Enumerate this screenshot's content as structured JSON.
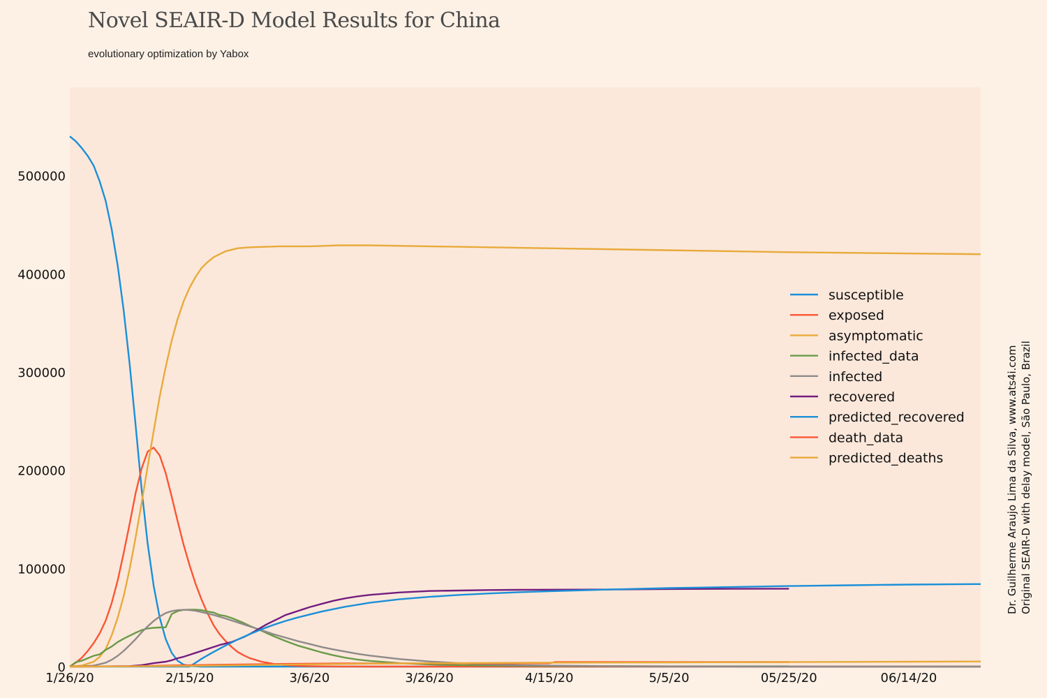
{
  "chart_data": {
    "type": "line",
    "title": "Novel SEAIR-D Model Results for China",
    "subtitle": "evolutionary optimization by Yabox",
    "credit_line1": "Dr. Guilherme Araujo Lima da Silva, www.ats4i.com",
    "credit_line2": "Original SEAIR-D with delay model, São Paulo, Brazil",
    "xlabel": "",
    "ylabel": "",
    "x_unit": "days since 1/26/20",
    "xlim": [
      0,
      152
    ],
    "ylim": [
      0,
      590000
    ],
    "x_ticks": [
      {
        "x": 0,
        "label": "1/26/20"
      },
      {
        "x": 20,
        "label": "2/15/20"
      },
      {
        "x": 40,
        "label": "3/6/20"
      },
      {
        "x": 60,
        "label": "3/26/20"
      },
      {
        "x": 80,
        "label": "4/15/20"
      },
      {
        "x": 100,
        "label": "5/5/20"
      },
      {
        "x": 120,
        "label": "05/25/20"
      },
      {
        "x": 140,
        "label": "06/14/20"
      }
    ],
    "y_ticks": [
      {
        "y": 0,
        "label": "0"
      },
      {
        "y": 100000,
        "label": "100000"
      },
      {
        "y": 200000,
        "label": "200000"
      },
      {
        "y": 300000,
        "label": "300000"
      },
      {
        "y": 400000,
        "label": "400000"
      },
      {
        "y": 500000,
        "label": "500000"
      }
    ],
    "grid": false,
    "legend_position": "right",
    "series": [
      {
        "name": "susceptible",
        "color": "#1a8fd8",
        "points": [
          [
            0,
            540000
          ],
          [
            1,
            535000
          ],
          [
            2,
            528000
          ],
          [
            3,
            520000
          ],
          [
            4,
            510000
          ],
          [
            5,
            494000
          ],
          [
            6,
            474000
          ],
          [
            7,
            445000
          ],
          [
            8,
            408000
          ],
          [
            9,
            362000
          ],
          [
            10,
            307000
          ],
          [
            11,
            245000
          ],
          [
            12,
            180000
          ],
          [
            13,
            125000
          ],
          [
            14,
            82000
          ],
          [
            15,
            50000
          ],
          [
            16,
            28000
          ],
          [
            17,
            14000
          ],
          [
            18,
            6000
          ],
          [
            19,
            2000
          ],
          [
            20,
            500
          ],
          [
            22,
            0
          ],
          [
            40,
            0
          ],
          [
            80,
            0
          ],
          [
            152,
            0
          ]
        ]
      },
      {
        "name": "exposed",
        "color": "#fa5533",
        "points": [
          [
            0,
            0
          ],
          [
            1,
            4000
          ],
          [
            2,
            9000
          ],
          [
            3,
            16000
          ],
          [
            4,
            24000
          ],
          [
            5,
            34000
          ],
          [
            6,
            47000
          ],
          [
            7,
            65000
          ],
          [
            8,
            88000
          ],
          [
            9,
            116000
          ],
          [
            10,
            146000
          ],
          [
            11,
            177000
          ],
          [
            12,
            202000
          ],
          [
            13,
            219000
          ],
          [
            14,
            223000
          ],
          [
            15,
            215000
          ],
          [
            16,
            197000
          ],
          [
            17,
            173000
          ],
          [
            18,
            148000
          ],
          [
            19,
            124000
          ],
          [
            20,
            103000
          ],
          [
            21,
            84000
          ],
          [
            22,
            68000
          ],
          [
            23,
            54000
          ],
          [
            24,
            42000
          ],
          [
            25,
            33000
          ],
          [
            26,
            26000
          ],
          [
            27,
            20000
          ],
          [
            28,
            15000
          ],
          [
            29,
            11500
          ],
          [
            30,
            8700
          ],
          [
            32,
            5000
          ],
          [
            34,
            2800
          ],
          [
            36,
            1500
          ],
          [
            38,
            800
          ],
          [
            40,
            400
          ],
          [
            45,
            100
          ],
          [
            50,
            0
          ],
          [
            152,
            0
          ]
        ]
      },
      {
        "name": "asymptomatic",
        "color": "#e8aa3a",
        "points": [
          [
            0,
            0
          ],
          [
            2,
            1000
          ],
          [
            4,
            5000
          ],
          [
            5,
            10000
          ],
          [
            6,
            18000
          ],
          [
            7,
            32000
          ],
          [
            8,
            50000
          ],
          [
            9,
            72000
          ],
          [
            10,
            100000
          ],
          [
            11,
            132000
          ],
          [
            12,
            167000
          ],
          [
            13,
            204000
          ],
          [
            14,
            240000
          ],
          [
            15,
            275000
          ],
          [
            16,
            305000
          ],
          [
            17,
            332000
          ],
          [
            18,
            354000
          ],
          [
            19,
            372000
          ],
          [
            20,
            386000
          ],
          [
            21,
            397000
          ],
          [
            22,
            406000
          ],
          [
            23,
            412000
          ],
          [
            24,
            417000
          ],
          [
            26,
            423000
          ],
          [
            28,
            426000
          ],
          [
            30,
            427000
          ],
          [
            35,
            428000
          ],
          [
            40,
            428000
          ],
          [
            45,
            429000
          ],
          [
            50,
            429000
          ],
          [
            60,
            428000
          ],
          [
            80,
            426000
          ],
          [
            100,
            424000
          ],
          [
            120,
            422000
          ],
          [
            152,
            420000
          ]
        ]
      },
      {
        "name": "infected_data",
        "color": "#6a9a48",
        "points": [
          [
            0,
            0
          ],
          [
            1,
            4500
          ],
          [
            2,
            6000
          ],
          [
            3,
            8500
          ],
          [
            4,
            11000
          ],
          [
            5,
            12500
          ],
          [
            6,
            17000
          ],
          [
            7,
            20500
          ],
          [
            8,
            25000
          ],
          [
            9,
            28500
          ],
          [
            10,
            31500
          ],
          [
            11,
            34500
          ],
          [
            12,
            37200
          ],
          [
            13,
            38800
          ],
          [
            14,
            39500
          ],
          [
            15,
            39800
          ],
          [
            16,
            40000
          ],
          [
            17,
            53500
          ],
          [
            18,
            56500
          ],
          [
            19,
            57800
          ],
          [
            20,
            58000
          ],
          [
            21,
            57900
          ],
          [
            22,
            57500
          ],
          [
            23,
            56000
          ],
          [
            24,
            55000
          ],
          [
            25,
            52500
          ],
          [
            26,
            51500
          ],
          [
            27,
            49500
          ],
          [
            28,
            47000
          ],
          [
            29,
            44500
          ],
          [
            30,
            41500
          ],
          [
            32,
            36500
          ],
          [
            34,
            31000
          ],
          [
            36,
            26000
          ],
          [
            38,
            21500
          ],
          [
            40,
            18000
          ],
          [
            42,
            14500
          ],
          [
            44,
            11500
          ],
          [
            46,
            9000
          ],
          [
            48,
            7200
          ],
          [
            50,
            5800
          ],
          [
            55,
            3500
          ],
          [
            60,
            2200
          ],
          [
            65,
            1500
          ],
          [
            70,
            1000
          ],
          [
            80,
            600
          ],
          [
            90,
            400
          ],
          [
            100,
            300
          ],
          [
            110,
            300
          ],
          [
            120,
            300
          ]
        ]
      },
      {
        "name": "infected",
        "color": "#8e8a88",
        "points": [
          [
            0,
            0
          ],
          [
            2,
            200
          ],
          [
            4,
            1000
          ],
          [
            5,
            2500
          ],
          [
            6,
            4000
          ],
          [
            7,
            7000
          ],
          [
            8,
            11000
          ],
          [
            9,
            16000
          ],
          [
            10,
            22000
          ],
          [
            11,
            28000
          ],
          [
            12,
            35000
          ],
          [
            13,
            41000
          ],
          [
            14,
            46500
          ],
          [
            15,
            51000
          ],
          [
            16,
            54500
          ],
          [
            17,
            56500
          ],
          [
            18,
            57500
          ],
          [
            19,
            57800
          ],
          [
            20,
            57500
          ],
          [
            21,
            56800
          ],
          [
            22,
            55500
          ],
          [
            24,
            52500
          ],
          [
            26,
            49000
          ],
          [
            28,
            45000
          ],
          [
            30,
            41000
          ],
          [
            32,
            37000
          ],
          [
            34,
            33000
          ],
          [
            36,
            29500
          ],
          [
            38,
            26000
          ],
          [
            40,
            23000
          ],
          [
            42,
            20000
          ],
          [
            44,
            17500
          ],
          [
            46,
            15200
          ],
          [
            48,
            13000
          ],
          [
            50,
            11200
          ],
          [
            55,
            7700
          ],
          [
            60,
            5200
          ],
          [
            65,
            3500
          ],
          [
            70,
            2300
          ],
          [
            75,
            1500
          ],
          [
            80,
            1000
          ],
          [
            90,
            500
          ],
          [
            100,
            200
          ],
          [
            120,
            50
          ],
          [
            152,
            0
          ]
        ]
      },
      {
        "name": "recovered",
        "color": "#731d7f",
        "points": [
          [
            0,
            0
          ],
          [
            10,
            500
          ],
          [
            12,
            1500
          ],
          [
            14,
            3500
          ],
          [
            16,
            5000
          ],
          [
            17,
            6500
          ],
          [
            18,
            8500
          ],
          [
            19,
            10000
          ],
          [
            20,
            12000
          ],
          [
            21,
            14000
          ],
          [
            22,
            16000
          ],
          [
            23,
            18000
          ],
          [
            24,
            20000
          ],
          [
            25,
            22000
          ],
          [
            26,
            23500
          ],
          [
            27,
            25000
          ],
          [
            28,
            27500
          ],
          [
            29,
            30000
          ],
          [
            30,
            33000
          ],
          [
            31,
            36500
          ],
          [
            32,
            40000
          ],
          [
            33,
            43500
          ],
          [
            34,
            46500
          ],
          [
            35,
            49500
          ],
          [
            36,
            52500
          ],
          [
            37,
            54500
          ],
          [
            38,
            56500
          ],
          [
            39,
            58500
          ],
          [
            40,
            60500
          ],
          [
            42,
            63800
          ],
          [
            44,
            67000
          ],
          [
            46,
            69500
          ],
          [
            48,
            71500
          ],
          [
            50,
            73000
          ],
          [
            55,
            75500
          ],
          [
            60,
            77000
          ],
          [
            65,
            77500
          ],
          [
            70,
            78000
          ],
          [
            75,
            78200
          ],
          [
            80,
            78300
          ],
          [
            90,
            78500
          ],
          [
            100,
            79000
          ],
          [
            110,
            79200
          ],
          [
            120,
            79300
          ]
        ]
      },
      {
        "name": "predicted_recovered",
        "color": "#1a8fd8",
        "points": [
          [
            0,
            0
          ],
          [
            18,
            0
          ],
          [
            20,
            0
          ],
          [
            22,
            8000
          ],
          [
            24,
            15000
          ],
          [
            26,
            21500
          ],
          [
            28,
            27500
          ],
          [
            30,
            33000
          ],
          [
            32,
            38000
          ],
          [
            34,
            42500
          ],
          [
            36,
            46500
          ],
          [
            38,
            50000
          ],
          [
            40,
            53000
          ],
          [
            42,
            56000
          ],
          [
            44,
            58500
          ],
          [
            46,
            61000
          ],
          [
            48,
            63000
          ],
          [
            50,
            65000
          ],
          [
            55,
            68500
          ],
          [
            60,
            71000
          ],
          [
            65,
            73000
          ],
          [
            70,
            74500
          ],
          [
            75,
            75800
          ],
          [
            80,
            76800
          ],
          [
            90,
            78500
          ],
          [
            100,
            80000
          ],
          [
            110,
            81000
          ],
          [
            120,
            82000
          ],
          [
            130,
            82800
          ],
          [
            140,
            83500
          ],
          [
            152,
            84000
          ]
        ]
      },
      {
        "name": "death_data",
        "color": "#fa5533",
        "points": [
          [
            0,
            0
          ],
          [
            10,
            300
          ],
          [
            15,
            900
          ],
          [
            20,
            1500
          ],
          [
            25,
            1900
          ],
          [
            30,
            2300
          ],
          [
            35,
            2700
          ],
          [
            40,
            3000
          ],
          [
            45,
            3200
          ],
          [
            50,
            3300
          ],
          [
            60,
            3300
          ],
          [
            70,
            3300
          ],
          [
            80,
            3350
          ],
          [
            81,
            4600
          ],
          [
            90,
            4600
          ],
          [
            100,
            4600
          ],
          [
            110,
            4600
          ],
          [
            120,
            4600
          ]
        ]
      },
      {
        "name": "predicted_deaths",
        "color": "#e8aa3a",
        "points": [
          [
            0,
            0
          ],
          [
            10,
            200
          ],
          [
            20,
            700
          ],
          [
            30,
            1500
          ],
          [
            40,
            2300
          ],
          [
            50,
            3000
          ],
          [
            60,
            3500
          ],
          [
            80,
            4000
          ],
          [
            100,
            4300
          ],
          [
            120,
            4600
          ],
          [
            140,
            5000
          ],
          [
            152,
            5200
          ]
        ]
      }
    ]
  }
}
